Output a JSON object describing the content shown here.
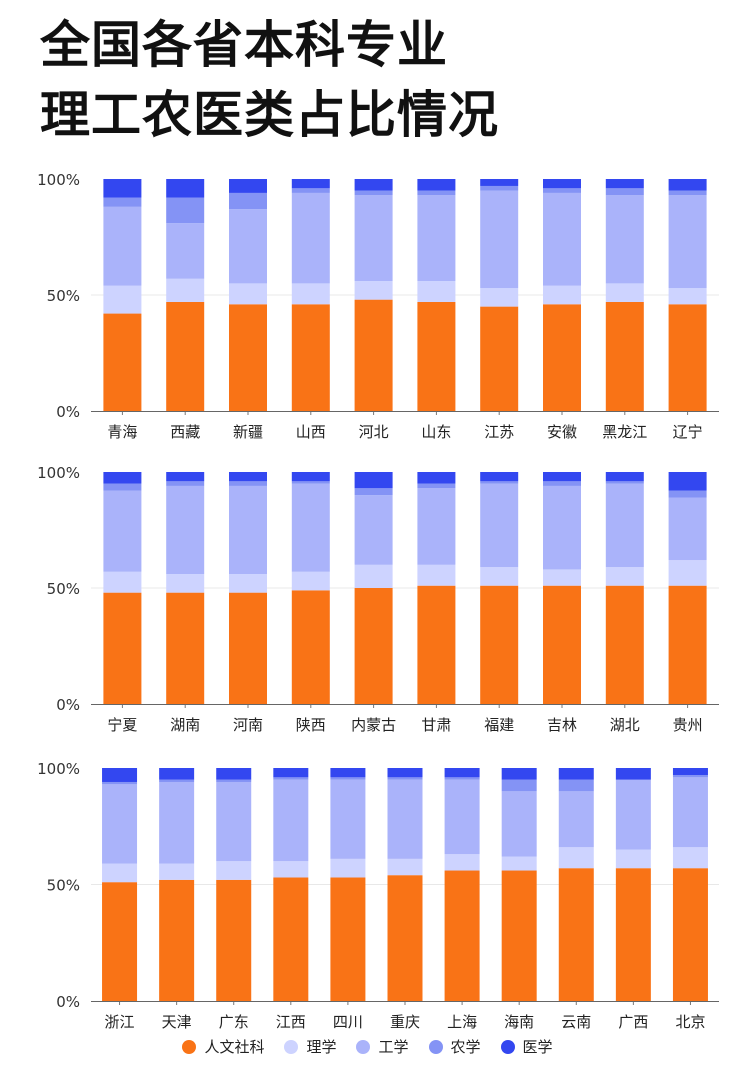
{
  "title_lines": [
    "全国各省本科专业",
    "理工农医类占比情况"
  ],
  "chart_data": {
    "type": "bar",
    "stacked": true,
    "y_tick_labels": [
      "100%",
      "50%",
      "0%"
    ],
    "ylim": [
      0,
      100
    ],
    "series_names": [
      "人文社科",
      "理学",
      "工学",
      "农学",
      "医学"
    ],
    "colors": {
      "人文社科": "#F97316",
      "理学": "#CDD3FF",
      "工学": "#AAB3FA",
      "农学": "#8493F5",
      "医学": "#3347F0"
    },
    "panels": [
      {
        "categories": [
          "青海",
          "西藏",
          "新疆",
          "山西",
          "河北",
          "山东",
          "江苏",
          "安徽",
          "黑龙江",
          "辽宁"
        ],
        "series": [
          {
            "name": "人文社科",
            "values": [
              42,
              47,
              46,
              46,
              48,
              47,
              45,
              46,
              47,
              46
            ]
          },
          {
            "name": "理学",
            "values": [
              12,
              10,
              9,
              9,
              8,
              9,
              8,
              8,
              8,
              7
            ]
          },
          {
            "name": "工学",
            "values": [
              34,
              24,
              32,
              39,
              37,
              37,
              42,
              40,
              38,
              40
            ]
          },
          {
            "name": "农学",
            "values": [
              4,
              11,
              7,
              2,
              2,
              2,
              2,
              2,
              3,
              2
            ]
          },
          {
            "name": "医学",
            "values": [
              8,
              8,
              6,
              4,
              5,
              5,
              3,
              4,
              4,
              5
            ]
          }
        ]
      },
      {
        "categories": [
          "宁夏",
          "湖南",
          "河南",
          "陕西",
          "内蒙古",
          "甘肃",
          "福建",
          "吉林",
          "湖北",
          "贵州"
        ],
        "series": [
          {
            "name": "人文社科",
            "values": [
              48,
              48,
              48,
              49,
              50,
              51,
              51,
              51,
              51,
              51
            ]
          },
          {
            "name": "理学",
            "values": [
              9,
              8,
              8,
              8,
              10,
              9,
              8,
              7,
              8,
              11
            ]
          },
          {
            "name": "工学",
            "values": [
              35,
              38,
              38,
              38,
              30,
              33,
              36,
              36,
              36,
              27
            ]
          },
          {
            "name": "农学",
            "values": [
              3,
              2,
              2,
              1,
              3,
              2,
              1,
              2,
              1,
              3
            ]
          },
          {
            "name": "医学",
            "values": [
              5,
              4,
              4,
              4,
              7,
              5,
              4,
              4,
              4,
              8
            ]
          }
        ]
      },
      {
        "categories": [
          "浙江",
          "天津",
          "广东",
          "江西",
          "四川",
          "重庆",
          "上海",
          "海南",
          "云南",
          "广西",
          "北京"
        ],
        "series": [
          {
            "name": "人文社科",
            "values": [
              51,
              52,
              52,
              53,
              53,
              54,
              56,
              56,
              57,
              57,
              57
            ]
          },
          {
            "name": "理学",
            "values": [
              8,
              7,
              8,
              7,
              8,
              7,
              7,
              6,
              9,
              8,
              9
            ]
          },
          {
            "name": "工学",
            "values": [
              34,
              35,
              34,
              35,
              34,
              34,
              32,
              28,
              24,
              30,
              30
            ]
          },
          {
            "name": "农学",
            "values": [
              1,
              1,
              1,
              1,
              1,
              1,
              1,
              5,
              5,
              0,
              1
            ]
          },
          {
            "name": "医学",
            "values": [
              6,
              5,
              5,
              4,
              4,
              4,
              4,
              5,
              5,
              5,
              3
            ]
          }
        ]
      }
    ]
  }
}
